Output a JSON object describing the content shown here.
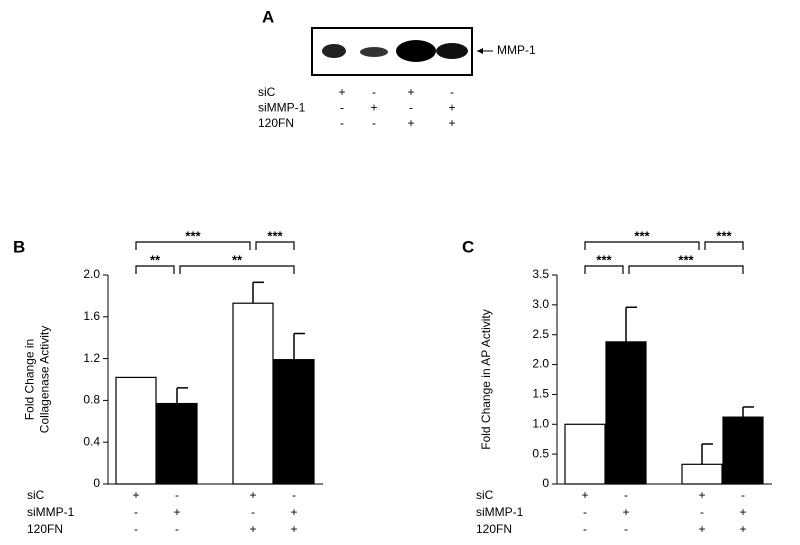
{
  "blot": {
    "panel": "A",
    "band_label": "MMP-1",
    "conditions": [
      {
        "name": "siC",
        "signs": [
          "+",
          "-",
          "+",
          "-"
        ]
      },
      {
        "name": "siMMP-1",
        "signs": [
          "-",
          "+",
          "-",
          "+"
        ]
      },
      {
        "name": "120FN",
        "signs": [
          "-",
          "-",
          "+",
          "+"
        ]
      }
    ]
  },
  "chart_data": [
    {
      "type": "bar",
      "panel": "B",
      "ylabel": [
        "Fold Change in",
        "Collagenase Activity"
      ],
      "categories": [
        null,
        null,
        null,
        null
      ],
      "values": [
        1.02,
        0.77,
        1.73,
        1.19
      ],
      "errors": [
        null,
        0.15,
        0.2,
        0.25
      ],
      "colors": [
        "#ffffff",
        "#000000",
        "#ffffff",
        "#000000"
      ],
      "ylim": [
        0,
        2
      ],
      "yticks": [
        0,
        0.4,
        0.8,
        1.2,
        1.6,
        {
          "value": 2,
          "label": "2.0"
        }
      ],
      "conditions": [
        {
          "name": "siC",
          "signs": [
            "+",
            "-",
            "+",
            "-"
          ]
        },
        {
          "name": "siMMP-1",
          "signs": [
            "-",
            "+",
            "-",
            "+"
          ]
        },
        {
          "name": "120FN",
          "signs": [
            "-",
            "-",
            "+",
            "+"
          ]
        }
      ],
      "brackets": [
        [
          {
            "bars": [
              0,
              2
            ],
            "label": "***"
          },
          {
            "bars": [
              2,
              3
            ],
            "label": "***"
          }
        ],
        [
          {
            "bars": [
              0,
              1
            ],
            "label": "**"
          },
          {
            "bars": [
              1,
              3
            ],
            "label": "**"
          }
        ]
      ]
    },
    {
      "type": "bar",
      "panel": "C",
      "ylabel": [
        "Fold Change in AP Activity"
      ],
      "categories": [
        null,
        null,
        null,
        null
      ],
      "values": [
        1.0,
        2.38,
        0.33,
        1.12
      ],
      "errors": [
        null,
        0.58,
        0.34,
        0.17
      ],
      "colors": [
        "#ffffff",
        "#000000",
        "#ffffff",
        "#000000"
      ],
      "ylim": [
        0,
        3.5
      ],
      "yticks": [
        0,
        0.5,
        {
          "value": 1,
          "label": "1.0"
        },
        1.5,
        {
          "value": 2,
          "label": "2.0"
        },
        2.5,
        {
          "value": 3,
          "label": "3.0"
        },
        3.5
      ],
      "conditions": [
        {
          "name": "siC",
          "signs": [
            "+",
            "-",
            "+",
            "-"
          ]
        },
        {
          "name": "siMMP-1",
          "signs": [
            "-",
            "+",
            "-",
            "+"
          ]
        },
        {
          "name": "120FN",
          "signs": [
            "-",
            "-",
            "+",
            "+"
          ]
        }
      ],
      "brackets": [
        [
          {
            "bars": [
              0,
              2
            ],
            "label": "***"
          },
          {
            "bars": [
              2,
              3
            ],
            "label": "***"
          }
        ],
        [
          {
            "bars": [
              0,
              1
            ],
            "label": "***"
          },
          {
            "bars": [
              1,
              3
            ],
            "label": "***"
          }
        ]
      ]
    }
  ]
}
